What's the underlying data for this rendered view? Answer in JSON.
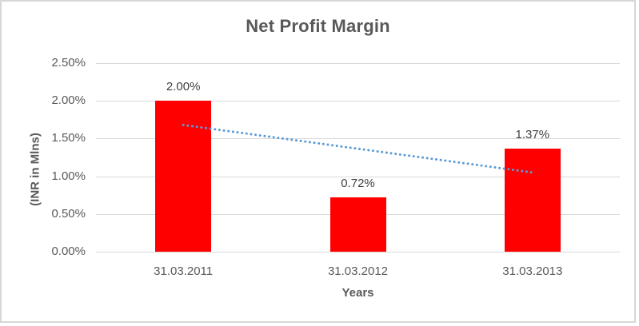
{
  "chart_data": {
    "type": "bar",
    "title": "Net Profit Margin",
    "categories": [
      "31.03.2011",
      "31.03.2012",
      "31.03.2013"
    ],
    "values": [
      2.0,
      0.72,
      1.37
    ],
    "data_labels": [
      "2.00%",
      "0.72%",
      "1.37%"
    ],
    "xlabel": "Years",
    "ylabel": "(INR in Mlns)",
    "ylim": [
      0,
      2.5
    ],
    "y_tick_interval": 0.5,
    "y_tick_labels": [
      "0.00%",
      "0.50%",
      "1.00%",
      "1.50%",
      "2.00%",
      "2.50%"
    ],
    "grid": true,
    "legend": "none",
    "bar_color": "#ff0000",
    "trendline": {
      "type": "linear",
      "style": "dotted",
      "color": "#5b9bd5",
      "start_value": 1.68,
      "end_value": 1.05
    },
    "colors": {
      "text": "#595959",
      "data_label": "#404040",
      "gridline": "#d9d9d9",
      "frame_border": "#d7d7d7",
      "background": "#ffffff"
    }
  }
}
